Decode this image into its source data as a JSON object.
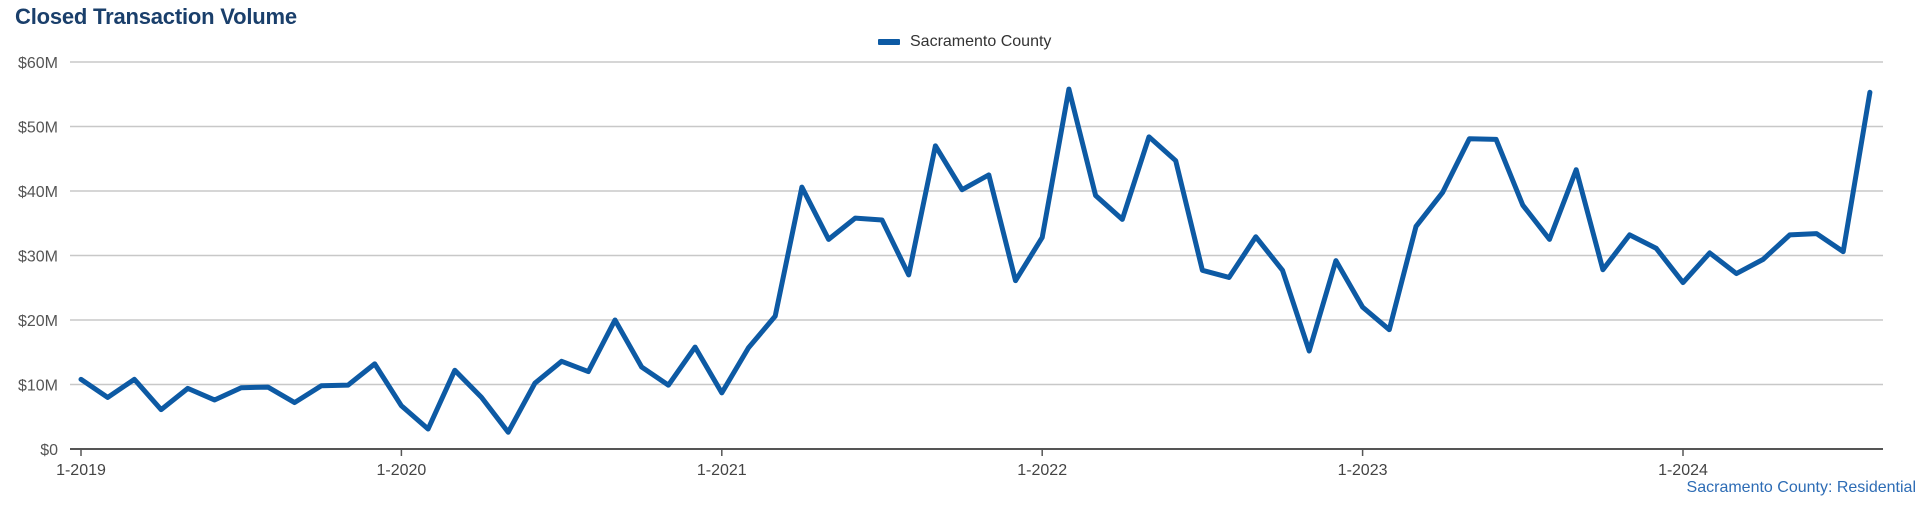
{
  "title": "Closed Transaction Volume",
  "source": "Sacramento County: Residential",
  "chart_data": {
    "type": "line",
    "title": "Closed Transaction Volume",
    "xlabel": "",
    "ylabel": "",
    "ylim": [
      0,
      60
    ],
    "yunit": "$M",
    "yticks": [
      0,
      10,
      20,
      30,
      40,
      50,
      60
    ],
    "ytick_labels": [
      "$0",
      "$10M",
      "$20M",
      "$30M",
      "$40M",
      "$50M",
      "$60M"
    ],
    "xtick_labels": [
      "1-2019",
      "1-2020",
      "1-2021",
      "1-2022",
      "1-2023",
      "1-2024"
    ],
    "grid": true,
    "legend_position": "top-center",
    "color": "#0d5aa4",
    "x": [
      "1-2019",
      "2-2019",
      "3-2019",
      "4-2019",
      "5-2019",
      "6-2019",
      "7-2019",
      "8-2019",
      "9-2019",
      "10-2019",
      "11-2019",
      "12-2019",
      "1-2020",
      "2-2020",
      "3-2020",
      "4-2020",
      "5-2020",
      "6-2020",
      "7-2020",
      "8-2020",
      "9-2020",
      "10-2020",
      "11-2020",
      "12-2020",
      "1-2021",
      "2-2021",
      "3-2021",
      "4-2021",
      "5-2021",
      "6-2021",
      "7-2021",
      "8-2021",
      "9-2021",
      "10-2021",
      "11-2021",
      "12-2021",
      "1-2022",
      "2-2022",
      "3-2022",
      "4-2022",
      "5-2022",
      "6-2022",
      "7-2022",
      "8-2022",
      "9-2022",
      "10-2022",
      "11-2022",
      "12-2022",
      "1-2023",
      "2-2023",
      "3-2023",
      "4-2023",
      "5-2023",
      "6-2023",
      "7-2023",
      "8-2023",
      "9-2023",
      "10-2023",
      "11-2023",
      "12-2023",
      "1-2024",
      "2-2024",
      "3-2024",
      "4-2024",
      "5-2024",
      "6-2024",
      "7-2024",
      "8-2024"
    ],
    "series": [
      {
        "name": "Sacramento County",
        "values": [
          10.8,
          8.0,
          10.8,
          6.1,
          9.4,
          7.6,
          9.5,
          9.6,
          7.2,
          9.8,
          9.9,
          13.2,
          6.7,
          3.1,
          12.2,
          8.0,
          2.6,
          10.2,
          13.6,
          12.0,
          20.0,
          12.7,
          9.9,
          15.8,
          8.7,
          15.7,
          20.6,
          40.6,
          32.5,
          35.8,
          35.5,
          27.0,
          47.0,
          40.2,
          42.5,
          26.1,
          32.8,
          55.8,
          39.3,
          35.6,
          48.4,
          44.7,
          27.7,
          26.6,
          32.9,
          27.7,
          15.2,
          29.2,
          22.0,
          18.5,
          34.5,
          39.8,
          48.1,
          48.0,
          37.8,
          32.5,
          43.3,
          27.8,
          33.2,
          31.1,
          25.8,
          30.4,
          27.2,
          29.4,
          33.2,
          33.4,
          30.6,
          55.3
        ]
      }
    ]
  }
}
